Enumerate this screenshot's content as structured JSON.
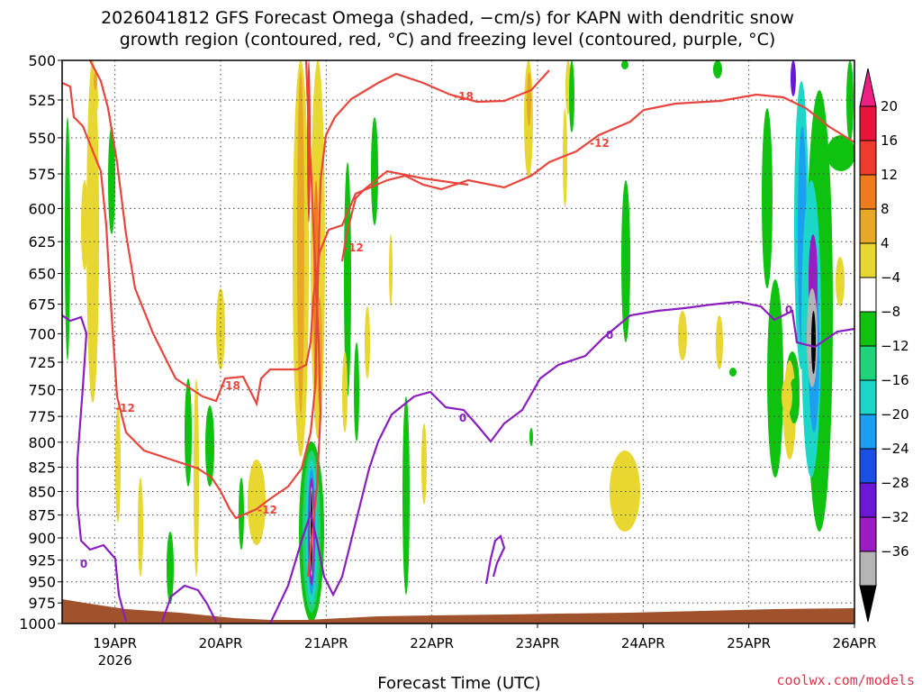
{
  "chart_data": {
    "type": "heatmap",
    "title_line1": "2026041812 GFS Forecast Omega (shaded, −cm/s) for KAPN with dendritic snow",
    "title_line2": "growth region (contoured, red, °C) and freezing level (contoured, purple, °C)",
    "xlabel": "Forecast Time (UTC)",
    "credit": "coolwx.com/models",
    "x_ticks": [
      {
        "label": "19APR",
        "sub": "2026",
        "day": 19
      },
      {
        "label": "20APR",
        "sub": "",
        "day": 20
      },
      {
        "label": "21APR",
        "sub": "",
        "day": 21
      },
      {
        "label": "22APR",
        "sub": "",
        "day": 22
      },
      {
        "label": "23APR",
        "sub": "",
        "day": 23
      },
      {
        "label": "24APR",
        "sub": "",
        "day": 24
      },
      {
        "label": "25APR",
        "sub": "",
        "day": 25
      },
      {
        "label": "26APR",
        "sub": "",
        "day": 26
      }
    ],
    "xlim": [
      18.5,
      26.0
    ],
    "y_ticks": [
      "500",
      "525",
      "550",
      "575",
      "600",
      "625",
      "650",
      "675",
      "700",
      "725",
      "750",
      "775",
      "800",
      "825",
      "850",
      "875",
      "900",
      "925",
      "950",
      "975",
      "1000"
    ],
    "ylim": [
      1000,
      500
    ],
    "y_scale": "log-pressure",
    "grid": true,
    "colorbar": {
      "labels": [
        "20",
        "16",
        "12",
        "8",
        "4",
        "−4",
        "−8",
        "−12",
        "−16",
        "−20",
        "−24",
        "−28",
        "−32",
        "−36"
      ],
      "colors": [
        "#e8143c",
        "#ee3b2e",
        "#ee7c1f",
        "#e8a827",
        "#e8d730",
        "#ffffff",
        "#10c210",
        "#1ed37a",
        "#1ad7c8",
        "#1c9ff0",
        "#1a4fe6",
        "#6a17d6",
        "#9b1cc4",
        "#b4b4b4"
      ],
      "top_color": "#ee1e82",
      "bottom_color": "#000000"
    },
    "red_contour_labels": [
      "-18",
      "-12",
      "-18",
      "-12",
      "-12",
      "-12"
    ],
    "purple_contour_labels": [
      "0",
      "0",
      "0",
      "0"
    ],
    "surface_color": "#a0522d",
    "red_color": "#e8453c",
    "purple_color": "#8a1dbf"
  }
}
